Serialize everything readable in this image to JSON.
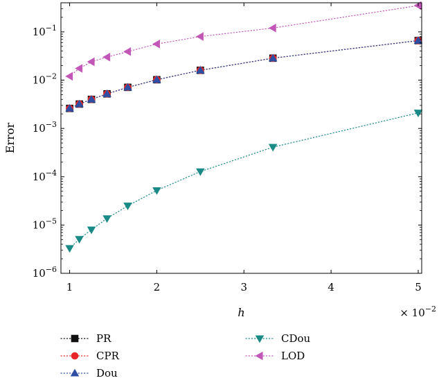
{
  "chart_data": {
    "type": "line",
    "title": "",
    "xlabel": "h",
    "ylabel": "Error",
    "x_multiplier_label": "× 10",
    "x_multiplier_exponent": "−2",
    "x_scale": "linear",
    "y_scale": "log",
    "xlim": [
      0.9,
      5.04
    ],
    "ylim": [
      1e-06,
      0.4
    ],
    "x_ticks": [
      1,
      2,
      3,
      4,
      5
    ],
    "x_tick_labels": [
      "1",
      "2",
      "3",
      "4",
      "5"
    ],
    "y_ticks": [
      1e-06,
      1e-05,
      0.0001,
      0.001,
      0.01,
      0.1
    ],
    "y_tick_base": "10",
    "y_tick_exponents": [
      "−6",
      "−5",
      "−4",
      "−3",
      "−2",
      "−1"
    ],
    "grid": false,
    "line_style": "dotted",
    "legend_position": "bottom",
    "x": [
      1.0,
      1.111,
      1.25,
      1.429,
      1.667,
      2.0,
      2.5,
      3.333,
      5.0
    ],
    "series": [
      {
        "name": "PR",
        "marker": "square",
        "color": "#111111",
        "values": [
          0.0026,
          0.0032,
          0.004,
          0.0052,
          0.0071,
          0.0102,
          0.016,
          0.0285,
          0.066
        ]
      },
      {
        "name": "CPR",
        "marker": "circle",
        "color": "#e8262a",
        "values": [
          0.0026,
          0.0032,
          0.004,
          0.0052,
          0.0071,
          0.0102,
          0.016,
          0.0285,
          0.066
        ]
      },
      {
        "name": "Dou",
        "marker": "triangle-up",
        "color": "#2e4fa3",
        "values": [
          0.0026,
          0.0032,
          0.004,
          0.0052,
          0.0071,
          0.0102,
          0.016,
          0.0285,
          0.066
        ]
      },
      {
        "name": "CDou",
        "marker": "triangle-down",
        "color": "#1a8a86",
        "values": [
          3.3e-06,
          5.1e-06,
          8e-06,
          1.37e-05,
          2.5e-05,
          5.2e-05,
          0.000128,
          0.00041,
          0.0021
        ]
      },
      {
        "name": "LOD",
        "marker": "triangle-left",
        "color": "#c257b8",
        "values": [
          0.012,
          0.0175,
          0.024,
          0.03,
          0.039,
          0.056,
          0.08,
          0.12,
          0.35
        ]
      }
    ]
  }
}
